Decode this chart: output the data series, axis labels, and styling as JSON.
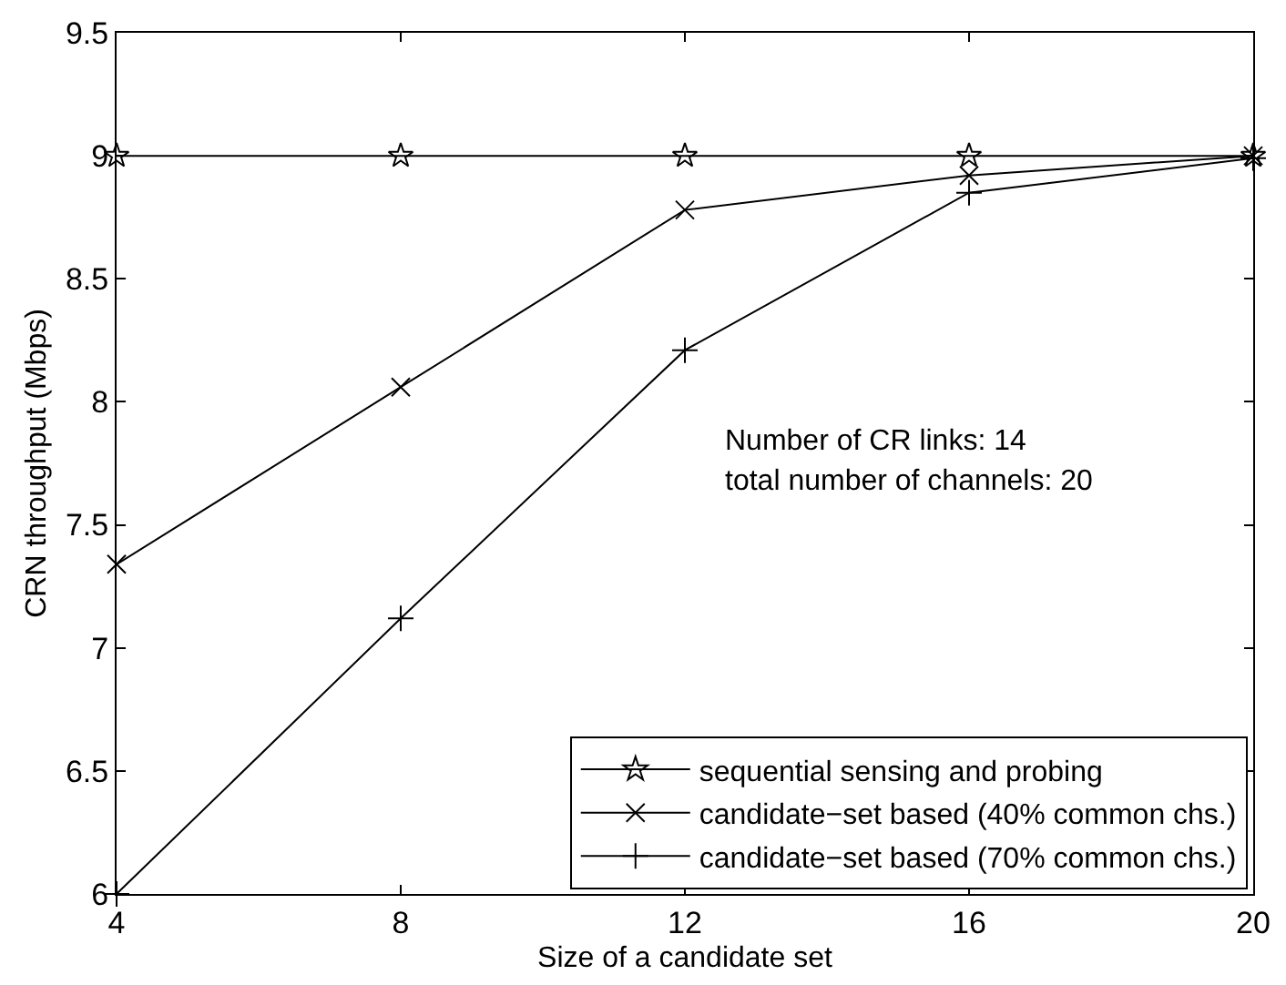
{
  "chart_data": {
    "type": "line",
    "xlabel": "Size of a candidate set",
    "ylabel": "CRN throughput (Mbps)",
    "x": [
      4,
      8,
      12,
      16,
      20
    ],
    "series": [
      {
        "name": "sequential sensing and probing",
        "color": "#000000",
        "marker": "star",
        "values": [
          9,
          9,
          9,
          9,
          9
        ]
      },
      {
        "name": "candidate−set based (40% common chs.)",
        "color": "#000000",
        "marker": "cross",
        "values": [
          7.34,
          8.06,
          8.78,
          8.92,
          9.0
        ]
      },
      {
        "name": "candidate−set based (70% common chs.)",
        "color": "#000000",
        "marker": "plus",
        "values": [
          6.0,
          7.12,
          8.21,
          8.85,
          8.99
        ]
      }
    ],
    "xlim": [
      4,
      20
    ],
    "xticks": [
      4,
      8,
      12,
      16,
      20
    ],
    "ylim": [
      6,
      9.5
    ],
    "yticks": [
      6,
      6.5,
      7,
      7.5,
      8,
      8.5,
      9,
      9.5
    ],
    "annotations": [
      "Number of CR links: 14",
      "total number of channels: 20"
    ],
    "legend": "bottom right",
    "line_style": "solid"
  }
}
